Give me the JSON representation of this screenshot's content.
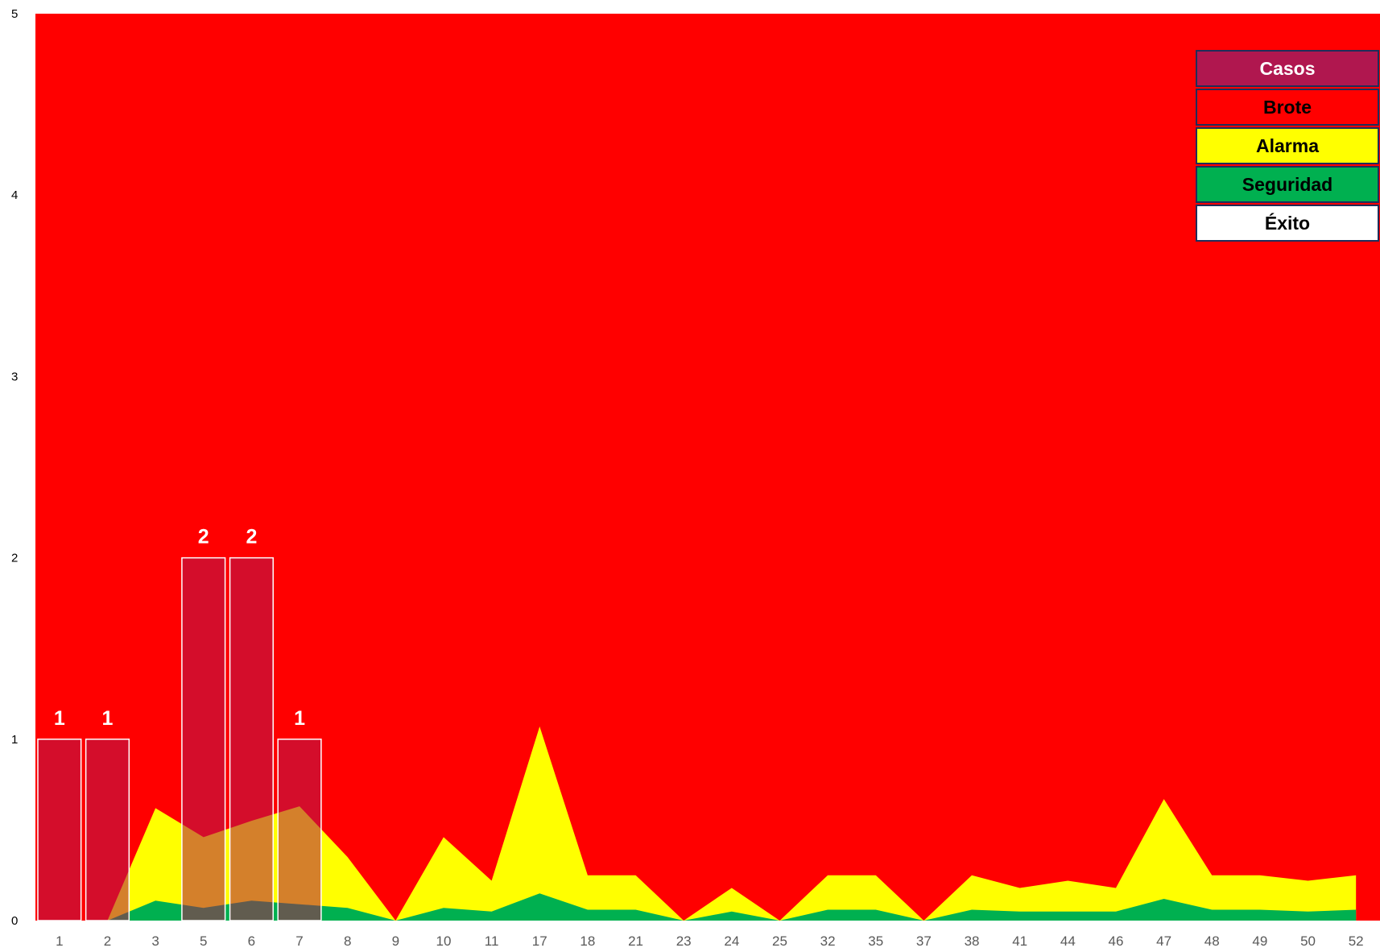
{
  "chart_data": {
    "type": "bar",
    "categories": [
      "1",
      "2",
      "3",
      "5",
      "6",
      "7",
      "8",
      "9",
      "10",
      "11",
      "17",
      "18",
      "21",
      "23",
      "24",
      "25",
      "32",
      "35",
      "37",
      "38",
      "41",
      "44",
      "46",
      "47",
      "48",
      "49",
      "50",
      "52"
    ],
    "ylim": [
      0,
      5
    ],
    "yticks": [
      "0",
      "1",
      "2",
      "3",
      "4",
      "5"
    ],
    "series": [
      {
        "name": "Casos",
        "kind": "bar",
        "color": "#b0174f",
        "values": [
          1,
          1,
          0,
          2,
          2,
          1,
          0,
          0,
          0,
          0,
          0,
          0,
          0,
          0,
          0,
          0,
          0,
          0,
          0,
          0,
          0,
          0,
          0,
          0,
          0,
          0,
          0,
          0
        ]
      },
      {
        "name": "Brote",
        "kind": "area",
        "color": "#ff0000",
        "values": [
          5,
          5,
          5,
          5,
          5,
          5,
          5,
          5,
          5,
          5,
          5,
          5,
          5,
          5,
          5,
          5,
          5,
          5,
          5,
          5,
          5,
          5,
          5,
          5,
          5,
          5,
          5,
          5
        ]
      },
      {
        "name": "Alarma",
        "kind": "area",
        "color": "#ffff00",
        "values": [
          0,
          0,
          0.62,
          0.46,
          0.55,
          0.63,
          0.35,
          0,
          0.46,
          0.22,
          1.07,
          0.25,
          0.25,
          0,
          0.18,
          0,
          0.25,
          0.25,
          0,
          0.25,
          0.18,
          0.22,
          0.18,
          0.67,
          0.25,
          0.25,
          0.22,
          0.25
        ]
      },
      {
        "name": "Seguridad",
        "kind": "area",
        "color": "#00b050",
        "values": [
          0,
          0,
          0.11,
          0.07,
          0.11,
          0.09,
          0.07,
          0,
          0.07,
          0.05,
          0.15,
          0.06,
          0.06,
          0,
          0.05,
          0,
          0.06,
          0.06,
          0,
          0.06,
          0.05,
          0.05,
          0.05,
          0.12,
          0.06,
          0.06,
          0.05,
          0.06
        ]
      },
      {
        "name": "Éxito",
        "kind": "area",
        "color": "#ffffff",
        "values": [
          0,
          0,
          0,
          0,
          0,
          0,
          0,
          0,
          0,
          0,
          0,
          0,
          0,
          0,
          0,
          0,
          0,
          0,
          0,
          0,
          0,
          0,
          0,
          0,
          0,
          0,
          0,
          0
        ]
      }
    ],
    "data_labels": [
      "1",
      "1",
      "",
      "2",
      "2",
      "1",
      "",
      "",
      "",
      "",
      "",
      "",
      "",
      "",
      "",
      "",
      "",
      "",
      "",
      "",
      "",
      "",
      "",
      "",
      "",
      "",
      "",
      ""
    ],
    "legend": {
      "placement": "top-right",
      "items": [
        {
          "label": "Casos",
          "bg": "#b0174f",
          "fg": "#ffffff"
        },
        {
          "label": "Brote",
          "bg": "#ff0000",
          "fg": "#000000"
        },
        {
          "label": "Alarma",
          "bg": "#ffff00",
          "fg": "#000000"
        },
        {
          "label": "Seguridad",
          "bg": "#00b050",
          "fg": "#000000"
        },
        {
          "label": "Éxito",
          "bg": "#ffffff",
          "fg": "#000000"
        }
      ]
    },
    "grid": false
  }
}
